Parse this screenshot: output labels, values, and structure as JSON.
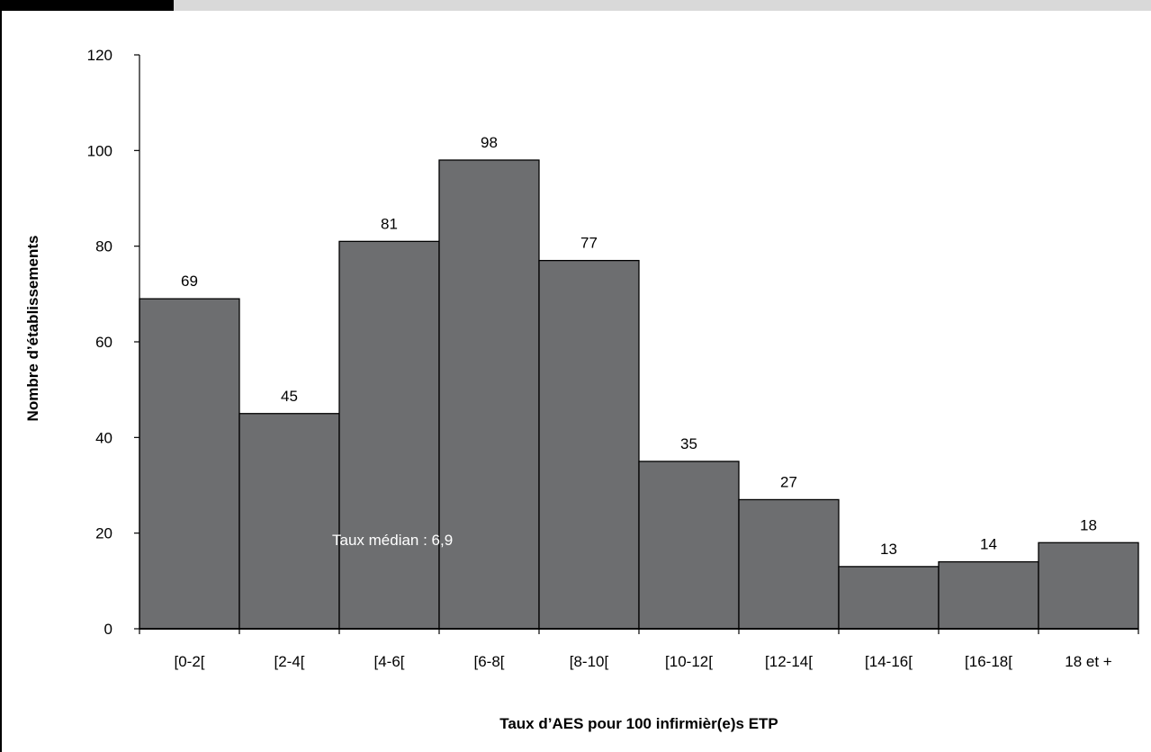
{
  "chart_data": {
    "type": "bar",
    "categories": [
      "[0-2[",
      "[2-4[",
      "[4-6[",
      "[6-8[",
      "[8-10[",
      "[10-12[",
      "[12-14[",
      "[14-16[",
      "[16-18[",
      "18 et +"
    ],
    "values": [
      69,
      45,
      81,
      98,
      77,
      35,
      27,
      13,
      14,
      18
    ],
    "title": "",
    "xlabel": "Taux d’AES pour 100 infirmièr(e)s ETP",
    "ylabel": "Nombre d’établissements",
    "ylim": [
      0,
      120
    ],
    "yticks": [
      0,
      20,
      40,
      60,
      80,
      100,
      120
    ],
    "annotation": "Taux médian : 6,9",
    "grid": false,
    "bar_color": "#6d6e70",
    "bar_edge_color": "#000000"
  }
}
